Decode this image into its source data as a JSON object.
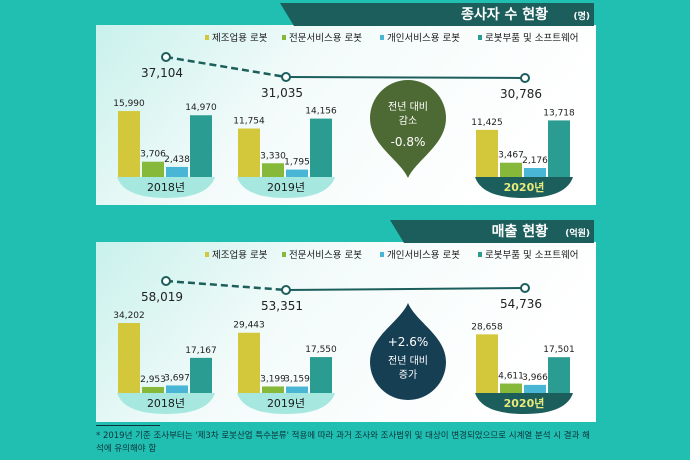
{
  "colors": {
    "manufacturing": "#d3c83b",
    "professional": "#86b83a",
    "personal": "#49b6d6",
    "parts": "#2a9c92",
    "banner": "#1b5e5c",
    "decrease_drop": "#4d6a34",
    "increase_drop": "#173f54",
    "background": "#20bfb2"
  },
  "chart_data": [
    {
      "type": "bar",
      "title": "종사자 수 현황",
      "unit": "(명)",
      "categories": [
        "2018년",
        "2019년",
        "2020년"
      ],
      "series": [
        {
          "name": "제조업용 로봇",
          "values": [
            15990,
            11754,
            11425
          ]
        },
        {
          "name": "전문서비스용 로봇",
          "values": [
            3706,
            3330,
            3467
          ]
        },
        {
          "name": "개인서비스용 로봇",
          "values": [
            2438,
            1795,
            2176
          ]
        },
        {
          "name": "로봇부품 및 소프트웨어",
          "values": [
            14970,
            14156,
            13718
          ]
        }
      ],
      "totals": [
        37104,
        31035,
        30786
      ],
      "totals_labels": [
        "37,104",
        "31,035",
        "30,786"
      ],
      "value_labels": [
        [
          "15,990",
          "11,754",
          "11,425"
        ],
        [
          "3,706",
          "3,330",
          "3,467"
        ],
        [
          "2,438",
          "1,795",
          "2,176"
        ],
        [
          "14,970",
          "14,156",
          "13,718"
        ]
      ],
      "callout": {
        "line1": "전년 대비",
        "line2": "감소",
        "value": "-0.8%"
      },
      "legend": "top-right"
    },
    {
      "type": "bar",
      "title": "매출 현황",
      "unit": "(억원)",
      "categories": [
        "2018년",
        "2019년",
        "2020년"
      ],
      "series": [
        {
          "name": "제조업용 로봇",
          "values": [
            34202,
            29443,
            28658
          ]
        },
        {
          "name": "전문서비스용 로봇",
          "values": [
            2953,
            3199,
            4611
          ]
        },
        {
          "name": "개인서비스용 로봇",
          "values": [
            3697,
            3159,
            3966
          ]
        },
        {
          "name": "로봇부품 및 소프트웨어",
          "values": [
            17167,
            17550,
            17501
          ]
        }
      ],
      "totals": [
        58019,
        53351,
        54736
      ],
      "totals_labels": [
        "58,019",
        "53,351",
        "54,736"
      ],
      "value_labels": [
        [
          "34,202",
          "29,443",
          "28,658"
        ],
        [
          "2,953",
          "3,199",
          "4,611"
        ],
        [
          "3,697",
          "3,159",
          "3,966"
        ],
        [
          "17,167",
          "17,550",
          "17,501"
        ]
      ],
      "callout": {
        "line1": "전년 대비",
        "line2": "증가",
        "value": "+2.6%"
      },
      "legend": "top-right"
    }
  ],
  "footnote": "* 2019년 기준 조사부터는 '제3차 로봇산업 특수분류' 적용에 따라 과거 조사와 조사범위 및 대상이 변경되었으므로 시계열 분석 시 결과 해석에 유의해야 함"
}
